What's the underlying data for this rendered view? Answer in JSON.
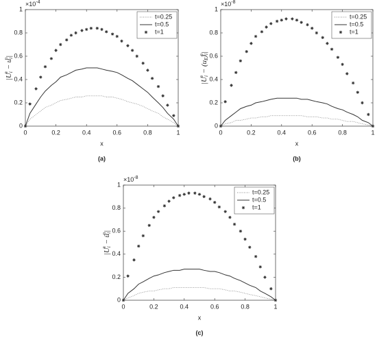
{
  "chart_data": [
    {
      "type": "line",
      "label": "(a)",
      "xlabel": "x",
      "ylabel": [
        {
          "base": "|U",
          "sub": "i",
          "sup": "n"
        },
        {
          "base": " − u",
          "sub": "i",
          "sup": "n"
        },
        {
          "base": "|"
        }
      ],
      "y_multiplier": {
        "base": "×10",
        "exp": "-4"
      },
      "x": [
        0,
        0.03,
        0.07,
        0.1,
        0.13,
        0.17,
        0.2,
        0.23,
        0.27,
        0.3,
        0.33,
        0.37,
        0.4,
        0.43,
        0.47,
        0.5,
        0.53,
        0.57,
        0.6,
        0.63,
        0.67,
        0.7,
        0.73,
        0.77,
        0.8,
        0.83,
        0.87,
        0.9,
        0.93,
        0.97,
        1
      ],
      "series": [
        {
          "name": "t=0.25",
          "color": "#8a8a8a",
          "style": "dotted",
          "values": [
            0,
            0.06,
            0.1,
            0.13,
            0.16,
            0.18,
            0.2,
            0.22,
            0.23,
            0.24,
            0.25,
            0.25,
            0.26,
            0.26,
            0.26,
            0.26,
            0.25,
            0.25,
            0.24,
            0.23,
            0.21,
            0.2,
            0.19,
            0.17,
            0.15,
            0.13,
            0.11,
            0.08,
            0.06,
            0.03,
            0
          ]
        },
        {
          "name": "t=0.5",
          "color": "#333333",
          "style": "solid",
          "values": [
            0,
            0.11,
            0.19,
            0.25,
            0.3,
            0.35,
            0.38,
            0.42,
            0.44,
            0.46,
            0.48,
            0.49,
            0.5,
            0.5,
            0.5,
            0.49,
            0.48,
            0.47,
            0.46,
            0.44,
            0.41,
            0.39,
            0.36,
            0.32,
            0.29,
            0.25,
            0.2,
            0.16,
            0.11,
            0.06,
            0
          ]
        },
        {
          "name": "t=1",
          "color": "#333333",
          "style": "markers",
          "values": [
            0,
            0.19,
            0.32,
            0.42,
            0.51,
            0.58,
            0.65,
            0.7,
            0.74,
            0.78,
            0.8,
            0.82,
            0.83,
            0.84,
            0.84,
            0.83,
            0.81,
            0.79,
            0.77,
            0.73,
            0.69,
            0.65,
            0.6,
            0.54,
            0.48,
            0.41,
            0.34,
            0.26,
            0.18,
            0.09,
            0
          ]
        }
      ],
      "xlim": [
        0,
        1
      ],
      "ylim": [
        0,
        1
      ],
      "xticks": [
        0,
        0.2,
        0.4,
        0.6,
        0.8,
        1
      ],
      "yticks": [
        0,
        0.2,
        0.4,
        0.6,
        0.8,
        1
      ],
      "legend": "upper right"
    },
    {
      "type": "line",
      "label": "(b)",
      "xlabel": "x",
      "ylabel": [
        {
          "base": "|U",
          "sub": "i",
          "sup": "n"
        },
        {
          "base": " − (u",
          "sub": "E"
        },
        {
          "base": ")",
          "sub": "i",
          "sup": "n"
        },
        {
          "base": "|"
        }
      ],
      "y_multiplier": {
        "base": "×10",
        "exp": "-8"
      },
      "x": [
        0,
        0.03,
        0.07,
        0.1,
        0.13,
        0.17,
        0.2,
        0.23,
        0.27,
        0.3,
        0.33,
        0.37,
        0.4,
        0.43,
        0.47,
        0.5,
        0.53,
        0.57,
        0.6,
        0.63,
        0.67,
        0.7,
        0.73,
        0.77,
        0.8,
        0.83,
        0.87,
        0.9,
        0.93,
        0.97,
        1
      ],
      "series": [
        {
          "name": "t=0.25",
          "color": "#8a8a8a",
          "style": "dotted",
          "values": [
            0,
            0.02,
            0.03,
            0.05,
            0.05,
            0.06,
            0.07,
            0.07,
            0.08,
            0.08,
            0.09,
            0.09,
            0.09,
            0.09,
            0.09,
            0.09,
            0.09,
            0.08,
            0.08,
            0.08,
            0.07,
            0.07,
            0.06,
            0.06,
            0.05,
            0.04,
            0.04,
            0.03,
            0.02,
            0.01,
            0
          ]
        },
        {
          "name": "t=0.5",
          "color": "#333333",
          "style": "solid",
          "values": [
            0,
            0.05,
            0.09,
            0.12,
            0.15,
            0.17,
            0.18,
            0.2,
            0.21,
            0.22,
            0.23,
            0.24,
            0.24,
            0.24,
            0.24,
            0.24,
            0.23,
            0.23,
            0.22,
            0.21,
            0.2,
            0.19,
            0.17,
            0.15,
            0.14,
            0.12,
            0.1,
            0.08,
            0.05,
            0.03,
            0
          ]
        },
        {
          "name": "t=1",
          "color": "#333333",
          "style": "markers",
          "values": [
            0,
            0.21,
            0.35,
            0.46,
            0.56,
            0.64,
            0.71,
            0.77,
            0.81,
            0.85,
            0.88,
            0.9,
            0.91,
            0.92,
            0.92,
            0.91,
            0.89,
            0.87,
            0.84,
            0.8,
            0.76,
            0.71,
            0.66,
            0.59,
            0.53,
            0.45,
            0.37,
            0.29,
            0.2,
            0.1,
            0
          ]
        }
      ],
      "xlim": [
        0,
        1
      ],
      "ylim": [
        0,
        1
      ],
      "xticks": [
        0,
        0.2,
        0.4,
        0.6,
        0.8,
        1
      ],
      "yticks": [
        0,
        0.2,
        0.4,
        0.6,
        0.8,
        1
      ],
      "legend": "upper right"
    },
    {
      "type": "line",
      "label": "(c)",
      "xlabel": "x",
      "ylabel": [
        {
          "base": "|U",
          "sub": "i",
          "sup": "n"
        },
        {
          "base": " − ū",
          "sub": "i",
          "sup": "n"
        },
        {
          "base": "|"
        }
      ],
      "y_multiplier": {
        "base": "×10",
        "exp": "-8"
      },
      "x": [
        0,
        0.03,
        0.07,
        0.1,
        0.13,
        0.17,
        0.2,
        0.23,
        0.27,
        0.3,
        0.33,
        0.37,
        0.4,
        0.43,
        0.47,
        0.5,
        0.53,
        0.57,
        0.6,
        0.63,
        0.67,
        0.7,
        0.73,
        0.77,
        0.8,
        0.83,
        0.87,
        0.9,
        0.93,
        0.97,
        1
      ],
      "series": [
        {
          "name": "t=0.25",
          "color": "#8a8a8a",
          "style": "dotted",
          "values": [
            0,
            0.02,
            0.04,
            0.06,
            0.07,
            0.08,
            0.08,
            0.09,
            0.1,
            0.1,
            0.11,
            0.11,
            0.11,
            0.11,
            0.11,
            0.11,
            0.11,
            0.1,
            0.1,
            0.1,
            0.09,
            0.08,
            0.08,
            0.07,
            0.06,
            0.05,
            0.04,
            0.03,
            0.02,
            0.01,
            0
          ]
        },
        {
          "name": "t=0.5",
          "color": "#333333",
          "style": "solid",
          "values": [
            0,
            0.06,
            0.1,
            0.14,
            0.16,
            0.19,
            0.21,
            0.22,
            0.24,
            0.25,
            0.26,
            0.26,
            0.27,
            0.27,
            0.27,
            0.27,
            0.26,
            0.25,
            0.25,
            0.24,
            0.22,
            0.21,
            0.19,
            0.17,
            0.15,
            0.13,
            0.11,
            0.08,
            0.06,
            0.03,
            0
          ]
        },
        {
          "name": "t=1",
          "color": "#333333",
          "style": "markers",
          "values": [
            0,
            0.21,
            0.35,
            0.47,
            0.56,
            0.65,
            0.72,
            0.77,
            0.82,
            0.86,
            0.89,
            0.91,
            0.92,
            0.93,
            0.93,
            0.92,
            0.9,
            0.88,
            0.85,
            0.81,
            0.77,
            0.72,
            0.66,
            0.6,
            0.53,
            0.46,
            0.38,
            0.29,
            0.2,
            0.1,
            0
          ]
        }
      ],
      "xlim": [
        0,
        1
      ],
      "ylim": [
        0,
        1
      ],
      "xticks": [
        0,
        0.2,
        0.4,
        0.6,
        0.8,
        1
      ],
      "yticks": [
        0,
        0.2,
        0.4,
        0.6,
        0.8,
        1
      ],
      "legend": "upper right"
    }
  ]
}
